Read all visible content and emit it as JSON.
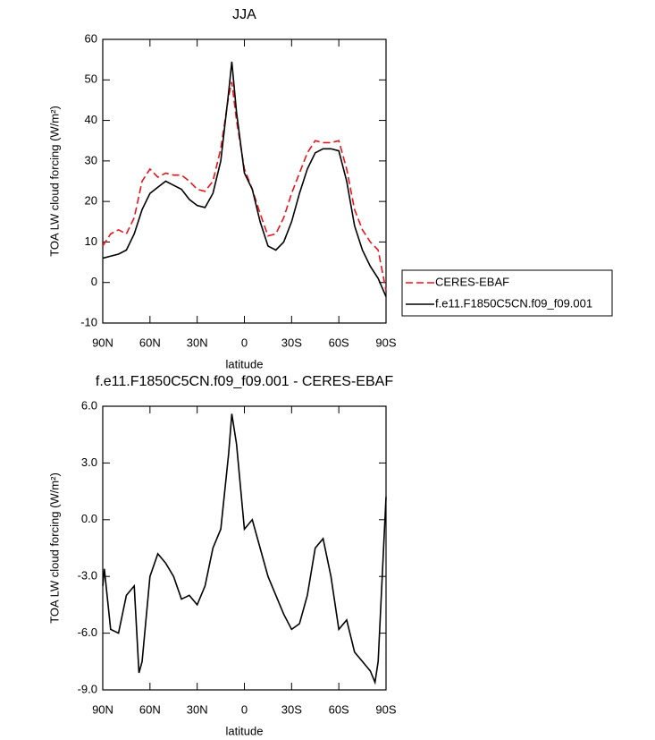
{
  "chart_data": [
    {
      "type": "line",
      "title": "JJA",
      "xlabel": "latitude",
      "ylabel": "TOA LW cloud forcing (W/m²)",
      "x": [
        90,
        85,
        80,
        75,
        70,
        65,
        60,
        55,
        50,
        45,
        40,
        35,
        30,
        25,
        20,
        15,
        10,
        8,
        5,
        0,
        -5,
        -10,
        -15,
        -20,
        -25,
        -30,
        -35,
        -40,
        -45,
        -50,
        -55,
        -60,
        -65,
        -70,
        -75,
        -80,
        -85,
        -90
      ],
      "series": [
        {
          "name": "CERES-EBAF",
          "color": "#e8141c",
          "dashed": true,
          "values": [
            9,
            12,
            13,
            12,
            16,
            25,
            28,
            26,
            27,
            26.5,
            26.5,
            25,
            23,
            22.5,
            25,
            33,
            46,
            49.5,
            40,
            28,
            23,
            17,
            11.5,
            12,
            16,
            22,
            27,
            32,
            35,
            34.5,
            34.5,
            35,
            28,
            18,
            13,
            10,
            8,
            -2
          ]
        },
        {
          "name": "f.e11.F1850C5CN.f09_f09.001",
          "color": "#000000",
          "dashed": false,
          "values": [
            6,
            6.5,
            7,
            8,
            12,
            18,
            22,
            23.5,
            25,
            24,
            23,
            20.5,
            19,
            18.5,
            22,
            30,
            47,
            54.5,
            42,
            27,
            23,
            15,
            9,
            8,
            10,
            15,
            22,
            28,
            32,
            33,
            33,
            32.5,
            25,
            14,
            8,
            4,
            1,
            -3.5
          ]
        }
      ],
      "xlim": [
        90,
        -90
      ],
      "xticks": [
        {
          "value": 90,
          "label": "90N"
        },
        {
          "value": 60,
          "label": "60N"
        },
        {
          "value": 30,
          "label": "30N"
        },
        0,
        {
          "value": -30,
          "label": "30S"
        },
        {
          "value": -60,
          "label": "60S"
        },
        {
          "value": -90,
          "label": "90S"
        }
      ],
      "ylim": [
        -10,
        60
      ],
      "yticks": [
        -10,
        0,
        10,
        20,
        30,
        40,
        50,
        60
      ],
      "legend_position": "right"
    },
    {
      "type": "line",
      "title": "f.e11.F1850C5CN.f09_f09.001 - CERES-EBAF",
      "xlabel": "latitude",
      "ylabel": "TOA LW cloud forcing (W/m²)",
      "x": [
        90,
        89,
        85,
        80,
        75,
        70,
        67,
        65,
        60,
        55,
        50,
        45,
        40,
        35,
        30,
        25,
        20,
        15,
        10,
        8,
        5,
        0,
        -5,
        -10,
        -15,
        -20,
        -25,
        -30,
        -35,
        -40,
        -45,
        -50,
        -55,
        -60,
        -65,
        -70,
        -75,
        -80,
        -83,
        -85,
        -90
      ],
      "values": [
        -3.5,
        -2.6,
        -5.8,
        -6.0,
        -4.0,
        -3.5,
        -8.1,
        -7.5,
        -3.0,
        -1.8,
        -2.3,
        -3.0,
        -4.2,
        -4.0,
        -4.5,
        -3.5,
        -1.5,
        -0.5,
        3.5,
        5.6,
        4.0,
        -0.5,
        0,
        -1.5,
        -3,
        -4,
        -5,
        -5.8,
        -5.5,
        -4,
        -1.5,
        -1.0,
        -3,
        -5.8,
        -5.3,
        -7,
        -7.5,
        -8.0,
        -8.6,
        -7.5,
        1.2
      ],
      "color": "#000000",
      "xlim": [
        90,
        -90
      ],
      "xticks": [
        {
          "value": 90,
          "label": "90N"
        },
        {
          "value": 60,
          "label": "60N"
        },
        {
          "value": 30,
          "label": "30N"
        },
        0,
        {
          "value": -30,
          "label": "30S"
        },
        {
          "value": -60,
          "label": "60S"
        },
        {
          "value": -90,
          "label": "90S"
        }
      ],
      "ylim": [
        -9,
        6
      ],
      "yticks": [
        {
          "value": -9,
          "label": "-9.0"
        },
        {
          "value": -6,
          "label": "-6.0"
        },
        {
          "value": -3,
          "label": "-3.0"
        },
        {
          "value": 0,
          "label": "0.0"
        },
        {
          "value": 3,
          "label": "3.0"
        },
        {
          "value": 6,
          "label": "6.0"
        }
      ]
    }
  ]
}
